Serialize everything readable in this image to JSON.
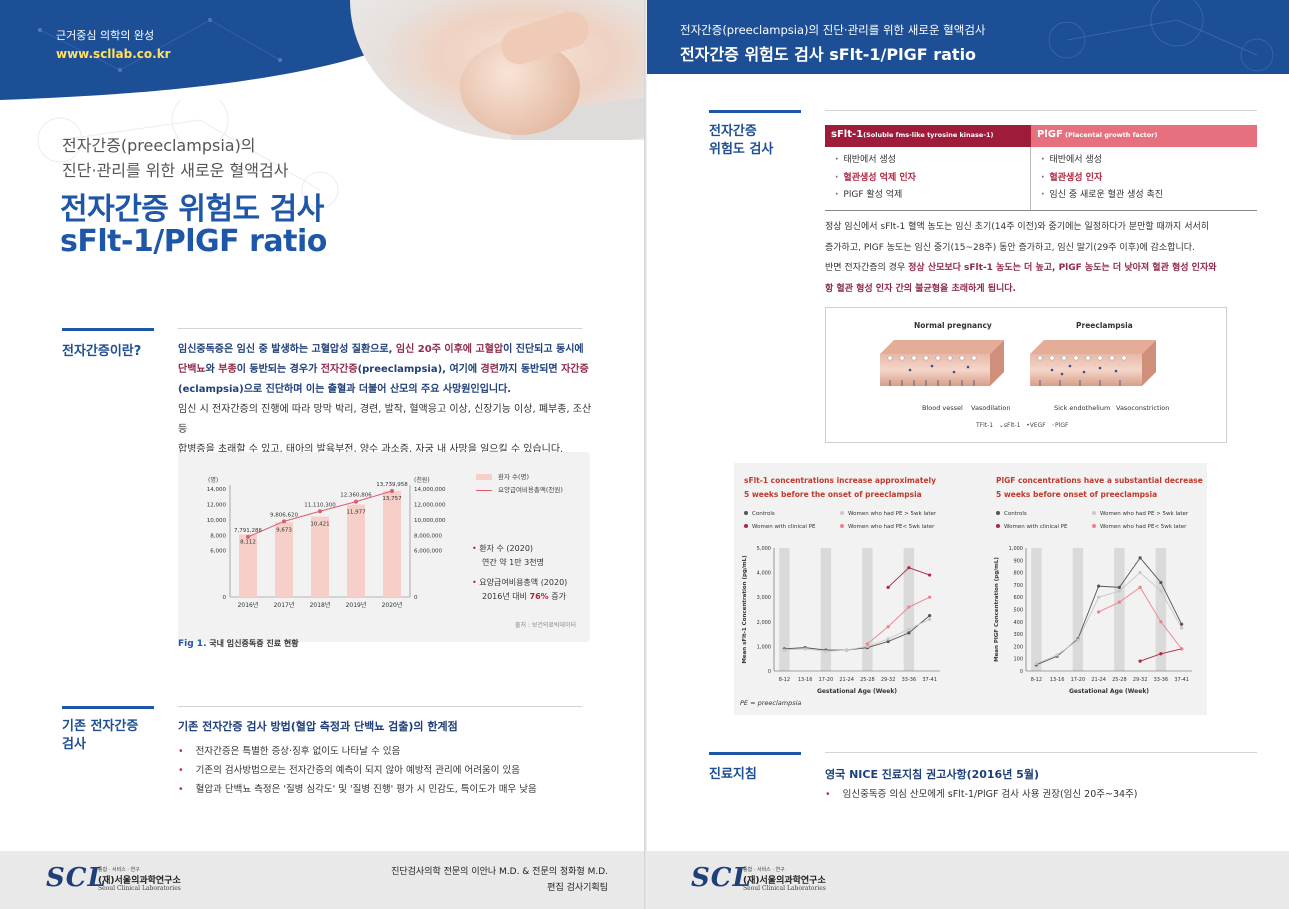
{
  "left": {
    "header": {
      "tagline": "근거중심 의학의 완성",
      "url": "www.scllab.co.kr"
    },
    "kicker": {
      "line1": "전자간증(preeclampsia)의",
      "line2": "진단·관리를 위한 새로운 혈액검사"
    },
    "title": {
      "line1": "전자간증 위험도 검사",
      "line2": "sFlt-1/PlGF ratio"
    },
    "section1": {
      "label": "전자간증이란?",
      "p1_a": "임신중독증은 임신 중 발생하는 고혈압성 질환으로, ",
      "p1_b": "임신 20주 이후에 고혈압",
      "p1_c": "이 진단되고 동시에",
      "p1_d": "단백뇨",
      "p1_e": "와 ",
      "p1_f": "부종",
      "p1_g": "이 동반되는 경우가 ",
      "p1_h": "전자간증",
      "p1_i": "(preeclampsia), 여기에 ",
      "p1_j": "경련",
      "p1_k": "까지 동반되면 ",
      "p1_l": "자간증",
      "p1_m": "(eclampsia)으로 진단하며 이는 출혈과 더불어 산모의 주요 사망원인입니다.",
      "p2_a": "임신 시 전자간증의 진행에 따라 망막 박리, 경련, 발작, 혈액응고 이상, 신장기능 이상, 폐부종, 조산 등",
      "p2_b": "합병증을 초래할 수 있고, 태아의 발육부전, 양수 과소증, 자궁 내 사망을 일으킬 수 있습니다."
    },
    "chart": {
      "legend_bar": "환자 수(명)",
      "legend_line": "요양급여비용총액(천원)",
      "left_unit": "(명)",
      "right_unit": "(천원)",
      "note1_title": "환자 수 (2020)",
      "note1_body": "연간 약 1만 3천명",
      "note2_title": "요양급여비용총액 (2020)",
      "note2_body_a": "2016년 대비 ",
      "note2_body_b": "76%",
      "note2_body_c": " 증가",
      "source": "출처 : 보건의료빅데이터"
    },
    "figure_caption": {
      "num": "Fig 1.",
      "text": " 국내 임신중독증 진료 현황"
    },
    "section2": {
      "label_line1": "기존 전자간증",
      "label_line2": "검사",
      "heading": "기존 전자간증 검사 방법(혈압 측정과 단백뇨 검출)의 한계점",
      "items": [
        "전자간증은 특별한 증상·징후 없이도 나타날 수 있음",
        "기존의 검사방법으로는 전자간증의 예측이 되지 않아 예방적 관리에 어려움이 있음",
        "혈압과 단백뇨 측정은 '질병 심각도' 및 '질병 진행' 평가 시 민감도, 특이도가 매우 낮음"
      ]
    },
    "footer": {
      "logo": "SCL",
      "sub1": "종합 · 서비스 · 연구",
      "sub2": "(재)서울의과학연구소",
      "sub3": "Seoul Clinical Laboratories",
      "credit1": "진단검사의학 전문의 이안나 M.D. & 전문의 정화형 M.D.",
      "credit2": "편집 검사기획팀"
    }
  },
  "right": {
    "header": {
      "subtitle": "전자간증(preeclampsia)의 진단·관리를 위한 새로운 혈액검사",
      "title": "전자간증 위험도 검사 sFlt-1/PlGF ratio"
    },
    "section1": {
      "label_line1": "전자간증",
      "label_line2": "위험도 검사"
    },
    "markers": {
      "h1_main": "sFlt-1",
      "h1_sub": "(Soluble fms-like tyrosine kinase-1)",
      "h2_main": "PlGF",
      "h2_sub": " (Placental growth factor)",
      "c1": [
        "태반에서 생성",
        "혈관생성 억제 인자",
        "PlGF 활성 억제"
      ],
      "c2": [
        "태반에서 생성",
        "혈관생성 인자",
        "임신 중 새로운 혈관 생성 촉진"
      ]
    },
    "paragraph": {
      "l1": "정상 임신에서 sFlt-1 혈액 농도는 임신 초기(14주 이전)와 중기에는 일정하다가 분만할 때까지 서서히",
      "l2": "증가하고, PlGF 농도는 임신 중기(15~28주) 동안 증가하고, 임신 말기(29주 이후)에 감소합니다.",
      "l3_a": "반면 전자간증의 경우 ",
      "l3_b": "정상 산모보다 sFlt-1 농도는 더 높고, PlGF 농도는 더 낮아져 혈관 형성 인자와",
      "l4": "항 혈관 형성 인자 간의 불균형을 초래하게 됩니다."
    },
    "diagram": {
      "label_normal": "Normal pregnancy",
      "label_pre": "Preeclampsia",
      "blood_vessel": "Blood vessel",
      "vasodilation": "Vasodilation",
      "sick_endo": "Sick endothelium",
      "vasoconstriction": "Vasoconstriction",
      "legend": [
        "Flt-1",
        "sFlt-1",
        "VEGF",
        "PlGF"
      ]
    },
    "graphs": {
      "pe_note": "PE = preeclampsia"
    },
    "section2": {
      "label": "진료지침",
      "heading": "영국 NICE 진료지침 권고사항(2016년 5월)",
      "item": "임신중독증 의심 산모에게 sFlt-1/PlGF 검사 사용 권장(임신 20주~34주)"
    },
    "footer": {
      "logo": "SCL",
      "sub1": "종합 · 서비스 · 연구",
      "sub2": "(재)서울의과학연구소",
      "sub3": "Seoul Clinical Laboratories"
    }
  },
  "chart_data": [
    {
      "type": "bar",
      "categories": [
        "2016년",
        "2017년",
        "2018년",
        "2019년",
        "2020년"
      ],
      "series": [
        {
          "name": "환자 수(명)",
          "values": [
            8112,
            9673,
            10421,
            11977,
            13757
          ]
        },
        {
          "name": "요양급여비용총액(천원)",
          "values": [
            7791286,
            9806620,
            11110300,
            12360806,
            13739958
          ]
        }
      ],
      "ylim": [
        0,
        14000
      ],
      "ylim_right": [
        0,
        14000000
      ],
      "yticks": [
        0,
        6000,
        8000,
        10000,
        12000,
        14000
      ],
      "yticks_right": [
        0,
        6000000,
        8000000,
        10000000,
        12000000,
        14000000
      ],
      "ytick_labels": [
        "0",
        "6,000",
        "8,000",
        "10,000",
        "12,000",
        "14,000"
      ],
      "ytick_labels_right": [
        "0",
        "6,000,000",
        "8,000,000",
        "10,000,000",
        "12,000,000",
        "14,000,000"
      ],
      "bar_labels": [
        "8,112",
        "9,673",
        "10,421",
        "11,977",
        "13,757"
      ],
      "line_labels": [
        "7,791,286",
        "9,806,620",
        "11,110,300",
        "12,360,806",
        "13,739,958"
      ],
      "legend": "top-right"
    },
    {
      "type": "line",
      "title": "sFlt-1 concentrations increase approximately",
      "subtitle": "5 weeks before the onset of preeclampsia",
      "xlabel": "Gestational Age (Week)",
      "ylabel": "Mean sFlt-1 Concentration (pg/mL)",
      "categories": [
        "8-12",
        "13-16",
        "17-20",
        "21-24",
        "25-28",
        "29-32",
        "33-36",
        "37-41"
      ],
      "ylim": [
        0,
        5000
      ],
      "yticks": [
        0,
        1000,
        2000,
        3000,
        4000,
        5000
      ],
      "ytick_labels": [
        "0",
        "1,000",
        "2,000",
        "3,000",
        "4,000",
        "5,000"
      ],
      "series": [
        {
          "name": "Controls",
          "color": "#555555",
          "values": [
            900,
            950,
            850,
            850,
            950,
            1200,
            1550,
            2250
          ]
        },
        {
          "name": "Women who had PE > 5wk later",
          "color": "#c8c8c8",
          "values": [
            850,
            900,
            800,
            850,
            1000,
            1300,
            1700,
            2100
          ]
        },
        {
          "name": "Women with clinical PE",
          "color": "#b0263f",
          "values": [
            null,
            null,
            null,
            null,
            null,
            3400,
            4200,
            3900
          ]
        },
        {
          "name": "Women who had PE< 5wk later",
          "color": "#f07f8a",
          "values": [
            null,
            null,
            null,
            null,
            1100,
            1800,
            2600,
            3000
          ]
        }
      ],
      "legend": "top"
    },
    {
      "type": "line",
      "title": "PlGF concentrations have a substantial decrease",
      "subtitle": "5 weeks before onset of preeclampsia",
      "xlabel": "Gestational Age (Week)",
      "ylabel": "Mean PlGF Concentration (pg/mL)",
      "categories": [
        "8-12",
        "13-16",
        "17-20",
        "21-24",
        "25-28",
        "29-32",
        "33-36",
        "37-41"
      ],
      "ylim": [
        0,
        1000
      ],
      "yticks": [
        0,
        100,
        200,
        300,
        400,
        500,
        600,
        700,
        800,
        900,
        1000
      ],
      "ytick_labels": [
        "0",
        "100",
        "200",
        "300",
        "400",
        "500",
        "600",
        "700",
        "800",
        "900",
        "1,000"
      ],
      "series": [
        {
          "name": "Controls",
          "color": "#555555",
          "values": [
            50,
            120,
            260,
            690,
            680,
            920,
            720,
            380
          ]
        },
        {
          "name": "Women who had PE > 5wk later",
          "color": "#c8c8c8",
          "values": [
            60,
            130,
            250,
            600,
            650,
            800,
            650,
            350
          ]
        },
        {
          "name": "Women with clinical PE",
          "color": "#b0263f",
          "values": [
            null,
            null,
            null,
            null,
            null,
            80,
            140,
            180
          ]
        },
        {
          "name": "Women who had PE< 5wk later",
          "color": "#f07f8a",
          "values": [
            null,
            null,
            null,
            480,
            560,
            680,
            400,
            180
          ]
        }
      ],
      "legend": "top"
    }
  ]
}
